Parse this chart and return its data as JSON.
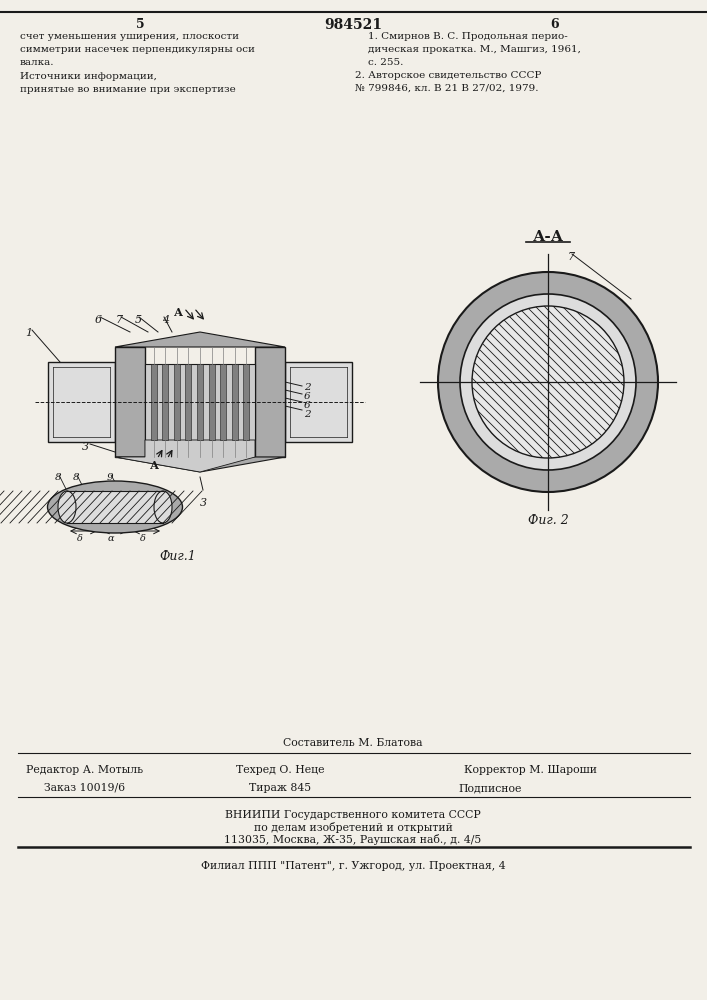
{
  "bg_color": "#f2efe8",
  "text_color": "#1a1a1a",
  "line_color": "#1a1a1a",
  "title_number": "984521",
  "page_left": "5",
  "page_right": "6",
  "top_left_text": [
    "счет уменьшения уширения, плоскости",
    "симметрии насечек перпендикулярны оси",
    "валка."
  ],
  "top_right_text": [
    "1. Смирнов В. С. Продольная перио-",
    "дическая прокатка. М., Машгиз, 1961,",
    "с. 255.",
    "2. Авторское свидетельство СССР",
    "№ 799846, кл. В 21 В 27/02, 1979."
  ],
  "sources_text": [
    "Источники информации,",
    "принятые во внимание при экспертизе"
  ],
  "fig1_label": "Фиг.1",
  "fig2_label": "Фиг. 2",
  "section_label": "А-А",
  "footer_line1": "Составитель М. Блатова",
  "footer_line2_left": "Редактор А. Мотыль",
  "footer_line2_mid": "Техред О. Неце",
  "footer_line2_right": "Корректор М. Шароши",
  "footer_line3_left": "Заказ 10019/6",
  "footer_line3_mid": "Тираж 845",
  "footer_line3_right": "Подписное",
  "footer_line4": "ВНИИПИ Государственного комитета СССР",
  "footer_line5": "по делам изобретений и открытий",
  "footer_line6": "113035, Москва, Ж-35, Раушская наб., д. 4/5",
  "footer_line7": "Филиал ППП \"Патент\", г. Ужгород, ул. Проектная, 4"
}
